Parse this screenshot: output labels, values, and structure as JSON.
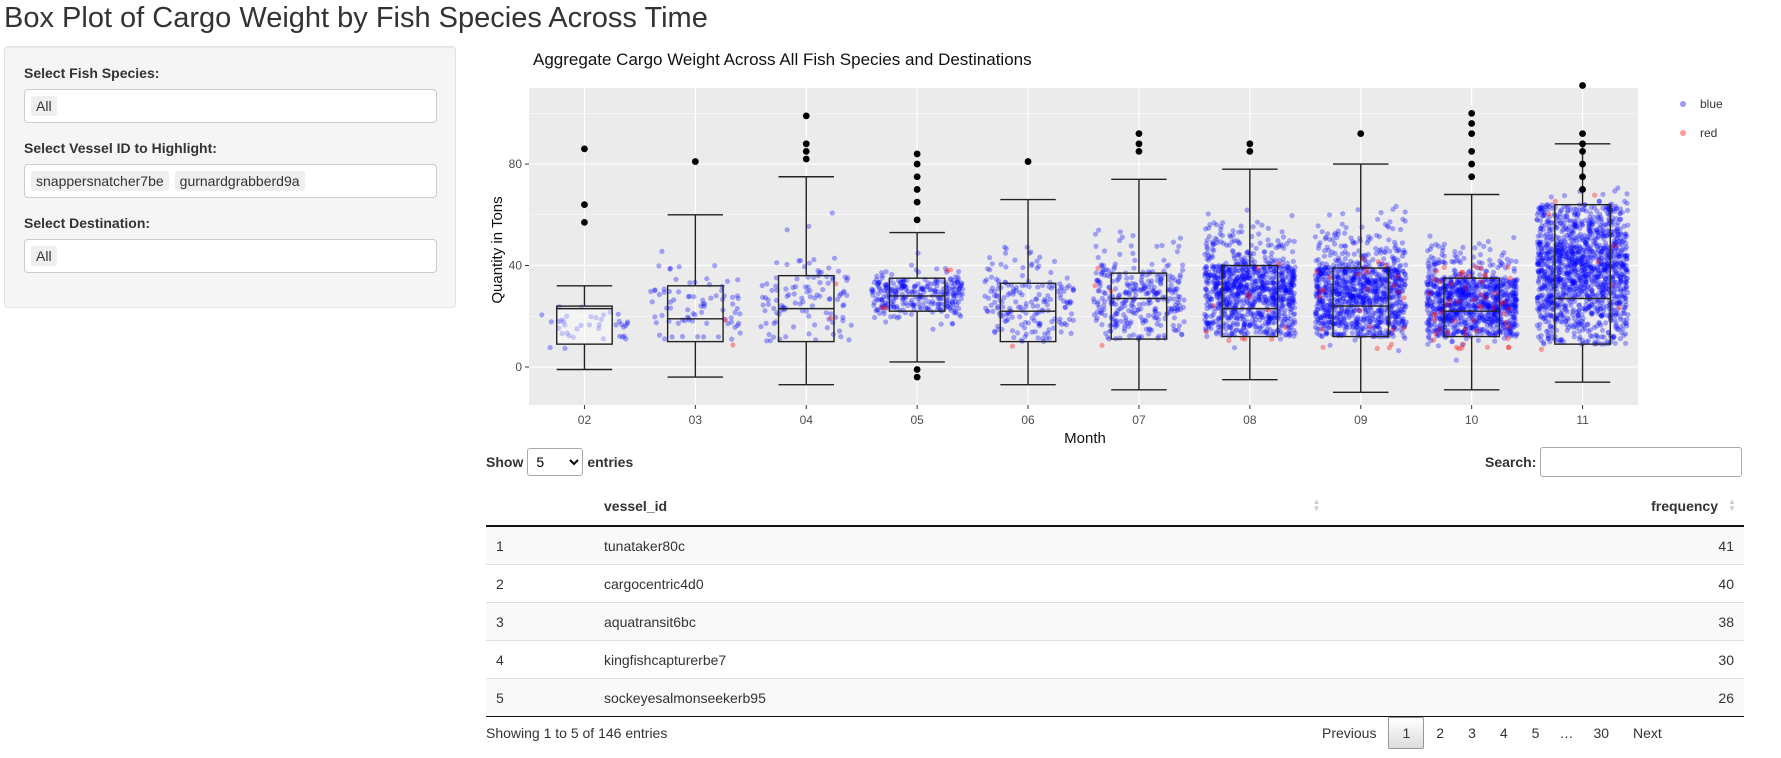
{
  "page": {
    "title": "Box Plot of Cargo Weight by Fish Species Across Time"
  },
  "sidebar": {
    "species_label": "Select Fish Species:",
    "species_selected": [
      "All"
    ],
    "vessel_label": "Select Vessel ID to Highlight:",
    "vessel_selected": [
      "snappersnatcher7be",
      "gurnardgrabberd9a"
    ],
    "destination_label": "Select Destination:",
    "destination_selected": [
      "All"
    ]
  },
  "chart_data": {
    "type": "box",
    "title": "Aggregate Cargo Weight Across All Fish Species and Destinations",
    "xlabel": "Month",
    "ylabel": "Quantity in Tons",
    "categories": [
      "02",
      "03",
      "04",
      "05",
      "06",
      "07",
      "08",
      "09",
      "10",
      "11"
    ],
    "ylim": [
      -15,
      110
    ],
    "yticks": [
      0,
      40,
      80
    ],
    "grid": true,
    "legend": {
      "position": "right",
      "entries": [
        "blue",
        "red"
      ]
    },
    "colors": {
      "blue": "#0000ff",
      "red": "#ff0000",
      "outlier": "#000000",
      "panel": "#ebebeb"
    },
    "boxes": [
      {
        "x": "02",
        "q1": 9,
        "median": 23,
        "q3": 24,
        "whisker_low": -1,
        "whisker_high": 32,
        "outliers": [
          86,
          64,
          57
        ]
      },
      {
        "x": "03",
        "q1": 10,
        "median": 19,
        "q3": 32,
        "whisker_low": -4,
        "whisker_high": 60,
        "outliers": [
          81
        ]
      },
      {
        "x": "04",
        "q1": 10,
        "median": 23,
        "q3": 36,
        "whisker_low": -7,
        "whisker_high": 75,
        "outliers": [
          99,
          88,
          85,
          82
        ]
      },
      {
        "x": "05",
        "q1": 22,
        "median": 28,
        "q3": 35,
        "whisker_low": 2,
        "whisker_high": 53,
        "outliers": [
          84,
          80,
          75,
          70,
          65,
          58,
          -1,
          -4
        ]
      },
      {
        "x": "06",
        "q1": 10,
        "median": 22,
        "q3": 33,
        "whisker_low": -7,
        "whisker_high": 66,
        "outliers": [
          81
        ]
      },
      {
        "x": "07",
        "q1": 11,
        "median": 27,
        "q3": 37,
        "whisker_low": -9,
        "whisker_high": 74,
        "outliers": [
          92,
          88,
          85
        ]
      },
      {
        "x": "08",
        "q1": 12,
        "median": 23,
        "q3": 40,
        "whisker_low": -5,
        "whisker_high": 78,
        "outliers": [
          88,
          85
        ]
      },
      {
        "x": "09",
        "q1": 12,
        "median": 24,
        "q3": 39,
        "whisker_low": -10,
        "whisker_high": 80,
        "outliers": [
          92
        ]
      },
      {
        "x": "10",
        "q1": 12,
        "median": 22,
        "q3": 35,
        "whisker_low": -9,
        "whisker_high": 68,
        "outliers": [
          100,
          96,
          92,
          85,
          80,
          75
        ]
      },
      {
        "x": "11",
        "q1": 9,
        "median": 27,
        "q3": 64,
        "whisker_low": -6,
        "whisker_high": 88,
        "outliers": [
          111,
          92,
          88,
          85,
          80,
          75,
          70
        ]
      }
    ],
    "jitter_density": [
      40,
      80,
      110,
      280,
      180,
      300,
      900,
      950,
      900,
      1300
    ],
    "red_points": [
      0,
      2,
      2,
      4,
      1,
      4,
      12,
      25,
      55,
      8
    ]
  },
  "table": {
    "length_label_pre": "Show",
    "length_value": "5",
    "length_label_post": "entries",
    "search_label": "Search:",
    "search_value": "",
    "columns": [
      "",
      "vessel_id",
      "frequency"
    ],
    "rows": [
      {
        "n": "1",
        "vessel_id": "tunataker80c",
        "frequency": "41"
      },
      {
        "n": "2",
        "vessel_id": "cargocentric4d0",
        "frequency": "40"
      },
      {
        "n": "3",
        "vessel_id": "aquatransit6bc",
        "frequency": "38"
      },
      {
        "n": "4",
        "vessel_id": "kingfishcapturerbe7",
        "frequency": "30"
      },
      {
        "n": "5",
        "vessel_id": "sockeyesalmonseekerb95",
        "frequency": "26"
      }
    ],
    "info": "Showing 1 to 5 of 146 entries",
    "pagination": {
      "previous": "Previous",
      "pages": [
        "1",
        "2",
        "3",
        "4",
        "5"
      ],
      "ellipsis": "…",
      "last": "30",
      "next": "Next",
      "current": "1"
    }
  }
}
